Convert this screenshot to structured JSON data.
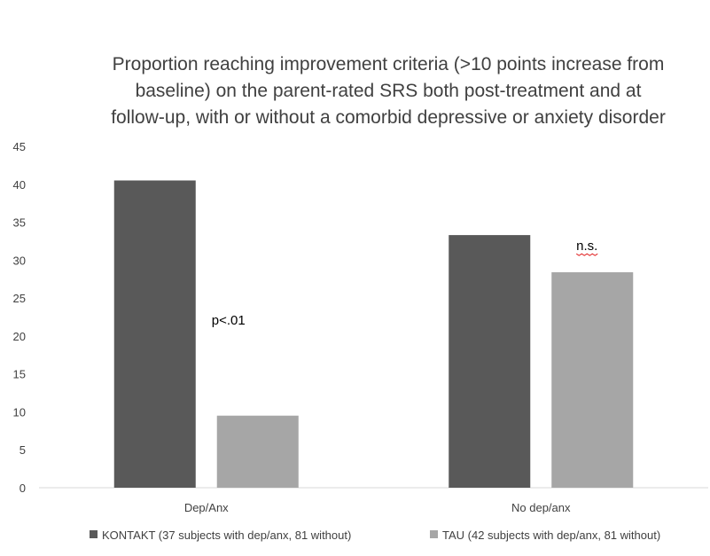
{
  "chart_data": {
    "type": "bar",
    "title_lines": [
      "Proportion reaching improvement criteria (>10 points increase from",
      "baseline) on the parent-rated SRS both post-treatment and at",
      "follow-up, with or without a comorbid depressive or anxiety disorder"
    ],
    "xlabel": "",
    "ylabel": "",
    "ylim": [
      0,
      45
    ],
    "yticks": [
      0,
      5,
      10,
      15,
      20,
      25,
      30,
      35,
      40,
      45
    ],
    "categories": [
      "Dep/Anx",
      "No dep/anx"
    ],
    "series": [
      {
        "name": "KONTAKT (37 subjects with dep/anx, 81 without)",
        "values": [
          40.5,
          33.3
        ],
        "color": "#595959"
      },
      {
        "name": "TAU (42 subjects with dep/anx, 81 without)",
        "values": [
          9.5,
          28.4
        ],
        "color": "#a6a6a6"
      }
    ],
    "annotations": [
      {
        "text": "p<.01",
        "category": "Dep/Anx"
      },
      {
        "text": "n.s.",
        "category": "No dep/anx"
      }
    ],
    "grid": false,
    "legend_position": "bottom"
  }
}
